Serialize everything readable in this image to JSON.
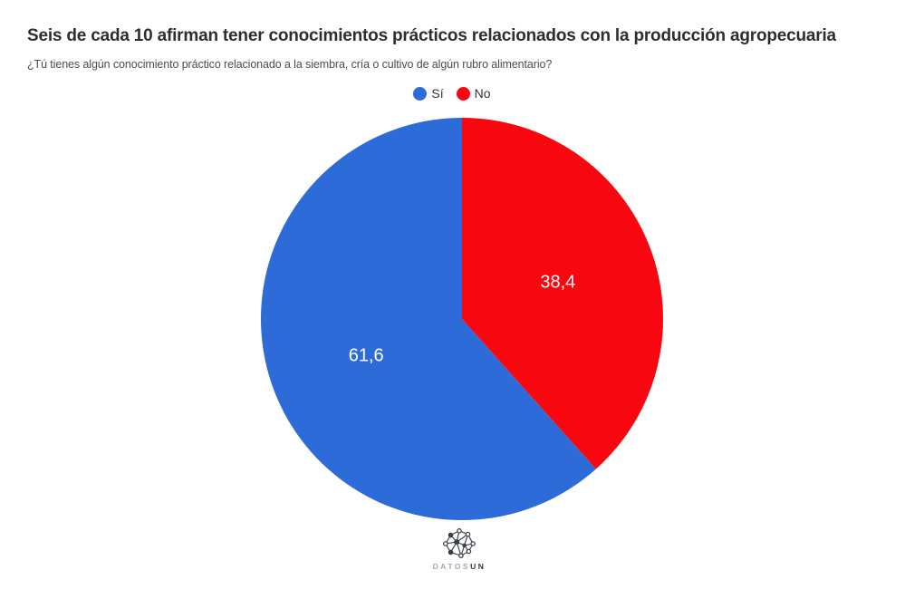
{
  "header": {
    "title": "Seis de cada 10 afirman tener conocimientos prácticos relacionados con la producción agropecuaria",
    "subtitle": "¿Tú tienes algún conocimiento práctico relacionado a la siembra, cría o cultivo de algún rubro alimentario?"
  },
  "chart_data": {
    "type": "pie",
    "title": "Seis de cada 10 afirman tener conocimientos prácticos relacionados con la producción agropecuaria",
    "subtitle": "¿Tú tienes algún conocimiento práctico relacionado a la siembra, cría o cultivo de algún rubro alimentario?",
    "slices": [
      {
        "label": "Sí",
        "slug": "si",
        "value": 61.6,
        "display": "61,6",
        "color": "#2d6cd8"
      },
      {
        "label": "No",
        "slug": "no",
        "value": 38.4,
        "display": "38,4",
        "color": "#f80710"
      }
    ],
    "start_angle": "12-oclock",
    "direction": "counter-clockwise",
    "value_label_color": "#ffffff",
    "legend_position": "top-center"
  },
  "footer": {
    "brand_prefix": "DATOS",
    "brand_suffix": "UN",
    "logo_icon": "network-graph-icon"
  }
}
